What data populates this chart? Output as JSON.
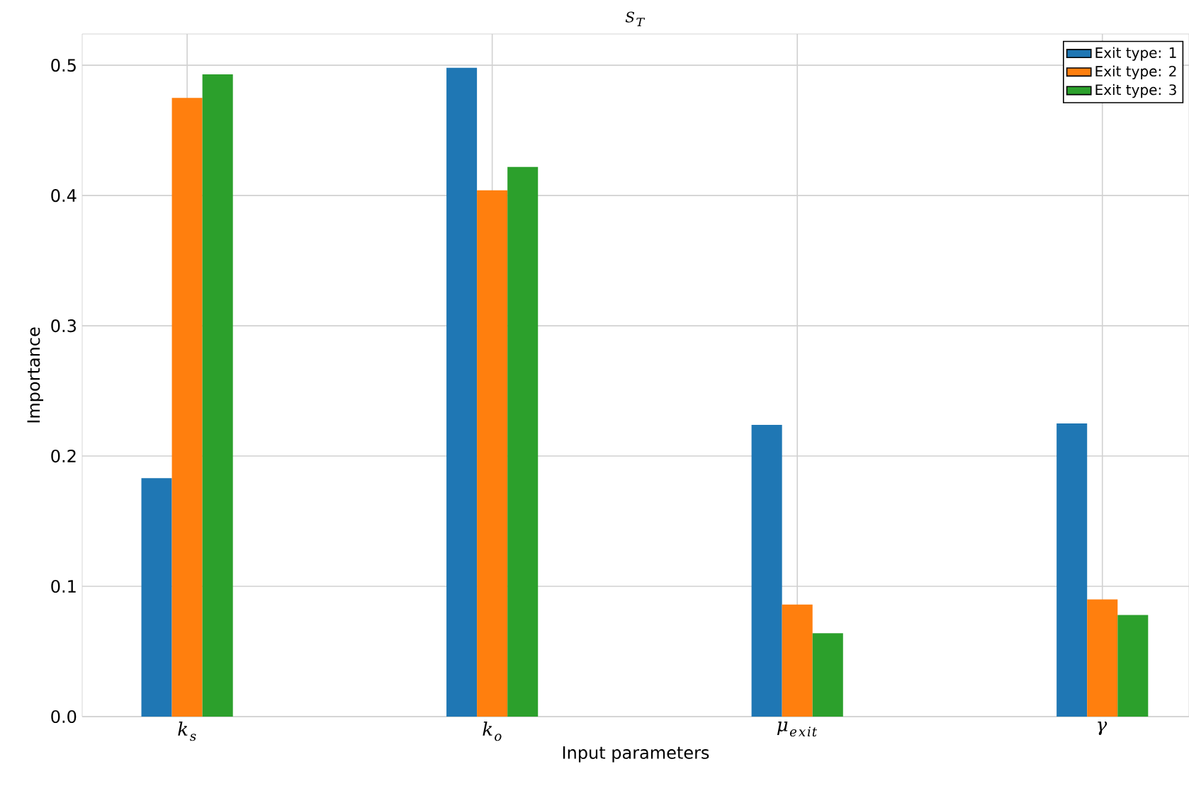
{
  "chart_data": {
    "type": "bar",
    "title": "S_T",
    "xlabel": "Input parameters",
    "ylabel": "Importance",
    "categories": [
      "k_s",
      "k_o",
      "\\mu_{exit}",
      "\\gamma"
    ],
    "series": [
      {
        "name": "Exit type: 1",
        "color": "#1f77b4",
        "values": [
          0.183,
          0.498,
          0.224,
          0.225
        ]
      },
      {
        "name": "Exit type: 2",
        "color": "#ff7f0e",
        "values": [
          0.475,
          0.404,
          0.086,
          0.09
        ]
      },
      {
        "name": "Exit type: 3",
        "color": "#2ca02c",
        "values": [
          0.493,
          0.422,
          0.064,
          0.078
        ]
      }
    ],
    "ylim": [
      0,
      0.524
    ],
    "yticks": [
      {
        "value": 0,
        "label": "0.0"
      },
      {
        "value": 0.1,
        "label": "0.1"
      },
      {
        "value": 0.2,
        "label": "0.2"
      },
      {
        "value": 0.3,
        "label": "0.3"
      },
      {
        "value": 0.4,
        "label": "0.4"
      },
      {
        "value": 0.5,
        "label": "0.5"
      }
    ],
    "grid": true,
    "legend": "top right"
  }
}
